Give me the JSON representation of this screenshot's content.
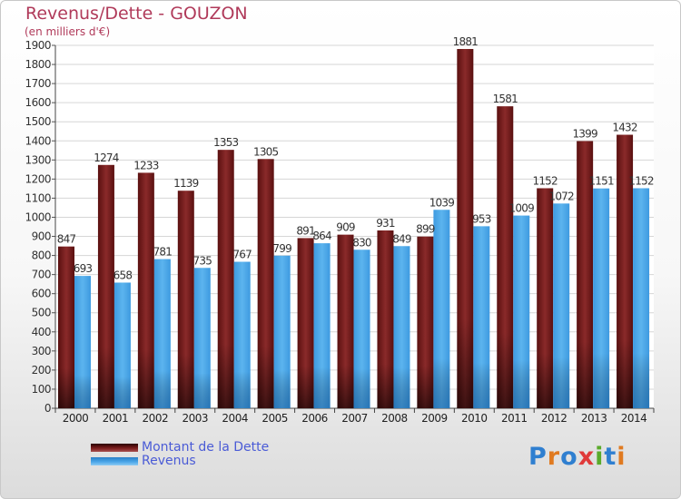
{
  "title": "Revenus/Dette - GOUZON",
  "subtitle": "(en milliers d'€)",
  "brand": "Proxiti",
  "colors": {
    "dette": "#7a1c1c",
    "revenus": "#4aa6e8",
    "title": "#b03a5a",
    "legend_text": "#4a5bd6"
  },
  "chart_data": {
    "type": "bar",
    "title": "Revenus/Dette - GOUZON",
    "subtitle": "(en milliers d'€)",
    "categories": [
      "2000",
      "2001",
      "2002",
      "2003",
      "2004",
      "2005",
      "2006",
      "2007",
      "2008",
      "2009",
      "2010",
      "2011",
      "2012",
      "2013",
      "2014"
    ],
    "series": [
      {
        "name": "Montant de la Dette",
        "values": [
          847,
          1274,
          1233,
          1139,
          1353,
          1305,
          891,
          909,
          931,
          899,
          1881,
          1581,
          1152,
          1399,
          1432
        ]
      },
      {
        "name": "Revenus",
        "values": [
          693,
          658,
          781,
          735,
          767,
          799,
          864,
          830,
          849,
          1039,
          953,
          1009,
          1072,
          1151,
          1152
        ]
      }
    ],
    "ylim": [
      0,
      1900
    ],
    "ytick_step": 100,
    "grid": true,
    "legend": "bottom-left"
  }
}
